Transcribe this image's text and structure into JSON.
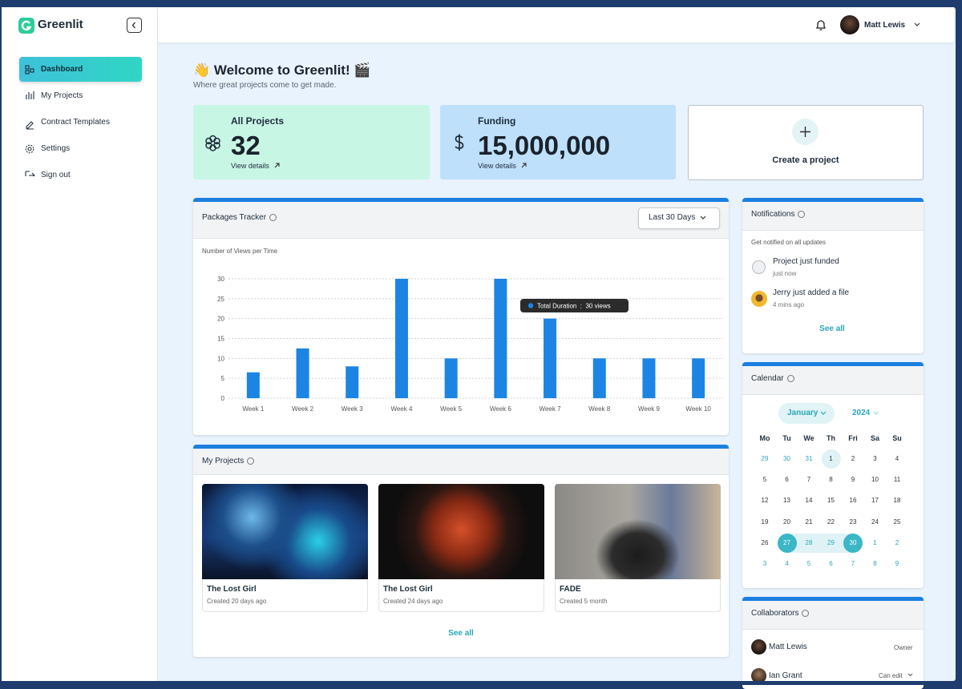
{
  "sidebar": {
    "logo": "Greenlit",
    "nav": [
      "Dashboard",
      "My Projects",
      "Contract Templates",
      "Settings",
      "Sign out"
    ]
  },
  "header": {
    "user": "Matt Lewis"
  },
  "welcome": {
    "title": "👋 Welcome to Greenlit! 🎬",
    "subtitle": "Where great projects come to get made."
  },
  "stats": [
    {
      "label": "All Projects",
      "value": "32",
      "link": "View details"
    },
    {
      "label": "Funding",
      "value": "15,000,000",
      "link": "View details"
    }
  ],
  "create": "Create a project",
  "tracker_filter": "Last 30 Days",
  "chart_data": {
    "type": "bar",
    "title": "Packages Tracker",
    "y_label": "Number of Views per Time",
    "categories": [
      "Week 1",
      "Week 2",
      "Week 3",
      "Week 4",
      "Week 5",
      "Week 6",
      "Week 7",
      "Week 8",
      "Week 9",
      "Week 10"
    ],
    "values": [
      6.5,
      12.5,
      8,
      30,
      10,
      30,
      20,
      10,
      10,
      10
    ],
    "color": "#1c84e3",
    "ylim": [
      0,
      30
    ],
    "yticks": [
      0,
      5,
      10,
      15,
      20,
      25,
      30
    ],
    "grid": true,
    "tooltip": "Total Duration  :  30 views"
  },
  "my_projects": {
    "title": "My Projects",
    "cards": [
      {
        "title": "The Lost Girl",
        "created": "Created 20 days ago"
      },
      {
        "title": "The Lost Girl",
        "created": "Created 24 days ago"
      },
      {
        "title": "FADE",
        "created": "Created 5 month"
      }
    ],
    "see_all": "See all"
  },
  "notifications": {
    "title": "Notifications",
    "subtitle": "Get notified on all updates",
    "items": [
      {
        "text": "Project just funded",
        "time": "just now"
      },
      {
        "text": "Jerry just added a file",
        "time": "4 mins ago"
      }
    ],
    "see_all": "See all"
  },
  "calendar": {
    "title": "Calendar",
    "month": "January",
    "year": "2024",
    "weekdays": [
      "Mo",
      "Tu",
      "We",
      "Th",
      "Fri",
      "Sa",
      "Su"
    ],
    "weeks": [
      [
        29,
        30,
        31,
        1,
        2,
        3,
        4
      ],
      [
        5,
        6,
        7,
        8,
        9,
        10,
        11
      ],
      [
        12,
        13,
        14,
        15,
        16,
        17,
        18
      ],
      [
        19,
        20,
        21,
        22,
        23,
        24,
        25
      ],
      [
        26,
        27,
        28,
        29,
        30,
        1,
        2
      ],
      [
        3,
        4,
        5,
        6,
        7,
        8,
        9
      ]
    ]
  },
  "collaborators": {
    "title": "Collaborators",
    "members": [
      {
        "name": "Matt Lewis",
        "role": "Owner"
      },
      {
        "name": "Ian Grant",
        "role": "Can edit"
      }
    ]
  }
}
